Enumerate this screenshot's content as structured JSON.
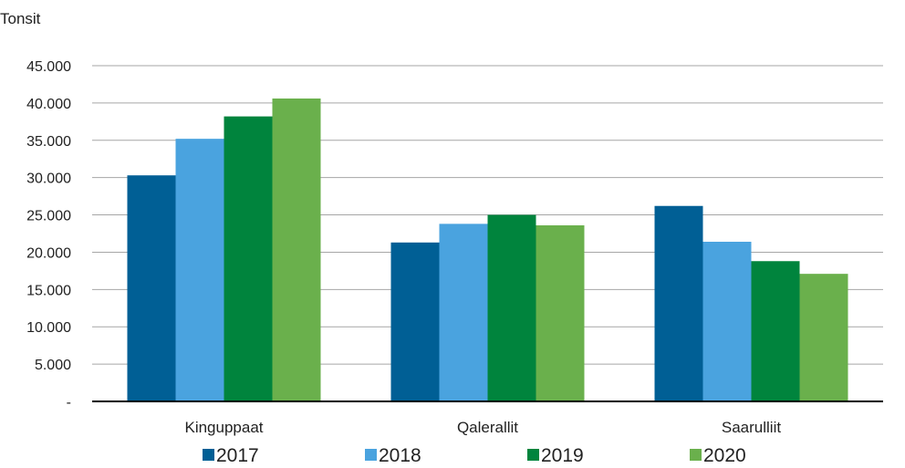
{
  "chart_data": {
    "type": "bar",
    "ylabel": "Tonsit",
    "categories": [
      "Kinguppaat",
      "Qalerallit",
      "Saarulliit"
    ],
    "series": [
      {
        "name": "2017",
        "values": [
          30300,
          21300,
          26200
        ],
        "color": "#005f95"
      },
      {
        "name": "2018",
        "values": [
          35200,
          23800,
          21400
        ],
        "color": "#4aa3df"
      },
      {
        "name": "2019",
        "values": [
          38200,
          25000,
          18800
        ],
        "color": "#00843d"
      },
      {
        "name": "2020",
        "values": [
          40600,
          23600,
          17100
        ],
        "color": "#6ab04c"
      }
    ],
    "ylim": [
      0,
      45000
    ],
    "yticks": [
      0,
      5000,
      10000,
      15000,
      20000,
      25000,
      30000,
      35000,
      40000,
      45000
    ],
    "ytick_labels": [
      "-",
      "5.000",
      "10.000",
      "15.000",
      "20.000",
      "25.000",
      "30.000",
      "35.000",
      "40.000",
      "45.000"
    ],
    "grid": true,
    "legend": "bottom"
  }
}
